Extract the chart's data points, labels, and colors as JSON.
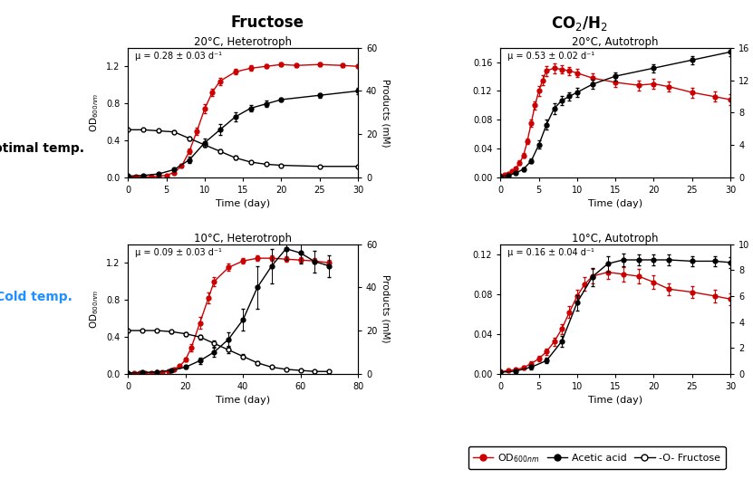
{
  "col_titles": [
    "Fructose",
    "CO₂/H₂"
  ],
  "row_labels": [
    "Optimal temp.",
    "Cold temp."
  ],
  "row_label_colors": [
    "black",
    "#1E90FF"
  ],
  "subplot_titles": [
    [
      "20°C, Heterotroph",
      "20°C, Autotroph"
    ],
    [
      "10°C, Heterotroph",
      "10°C, Autotroph"
    ]
  ],
  "mu_texts": [
    [
      "μ = 0.28 ± 0.03 d⁻¹",
      "μ = 0.53 ± 0.02 d⁻¹"
    ],
    [
      "μ = 0.09 ± 0.03 d⁻¹",
      "μ = 0.16 ± 0.04 d⁻¹"
    ]
  ],
  "plots": {
    "top_left": {
      "OD_x": [
        0,
        1,
        2,
        3,
        4,
        5,
        6,
        7,
        8,
        9,
        10,
        11,
        12,
        14,
        16,
        18,
        20,
        22,
        25,
        28,
        30
      ],
      "OD_y": [
        0.002,
        0.003,
        0.004,
        0.005,
        0.01,
        0.02,
        0.05,
        0.12,
        0.28,
        0.5,
        0.74,
        0.92,
        1.04,
        1.14,
        1.18,
        1.2,
        1.22,
        1.21,
        1.22,
        1.21,
        1.2
      ],
      "OD_err": [
        0.002,
        0.002,
        0.002,
        0.003,
        0.004,
        0.005,
        0.01,
        0.02,
        0.03,
        0.04,
        0.05,
        0.04,
        0.04,
        0.03,
        0.03,
        0.02,
        0.02,
        0.02,
        0.02,
        0.02,
        0.02
      ],
      "acetic_x": [
        0,
        2,
        4,
        6,
        8,
        10,
        12,
        14,
        16,
        18,
        20,
        25,
        30
      ],
      "acetic_y": [
        0.5,
        0.8,
        1.5,
        3.5,
        8,
        16,
        22,
        28,
        32,
        34,
        36,
        38,
        40
      ],
      "acetic_err": [
        0.3,
        0.4,
        0.5,
        0.7,
        1.5,
        2,
        2.5,
        2,
        1.5,
        1.5,
        1,
        1,
        1.5
      ],
      "fructose_x": [
        0,
        2,
        4,
        6,
        8,
        10,
        12,
        14,
        16,
        18,
        20,
        25,
        30
      ],
      "fructose_y": [
        22,
        22,
        21.5,
        21,
        18,
        15,
        12,
        9,
        7,
        6,
        5.5,
        5,
        5
      ],
      "fructose_err": [
        0.5,
        0.5,
        0.5,
        0.6,
        0.8,
        1,
        1,
        0.8,
        0.5,
        0.4,
        0.4,
        0.4,
        0.4
      ],
      "OD_ylim": [
        0,
        1.4
      ],
      "OD_yticks": [
        0.0,
        0.4,
        0.8,
        1.2
      ],
      "prod_ylim": [
        0,
        60
      ],
      "prod_yticks": [
        0,
        20,
        40,
        60
      ],
      "xlim": [
        0,
        30
      ],
      "xticks": [
        0,
        5,
        10,
        15,
        20,
        25,
        30
      ]
    },
    "top_right": {
      "OD_x": [
        0,
        0.5,
        1,
        1.5,
        2,
        2.5,
        3,
        3.5,
        4,
        4.5,
        5,
        5.5,
        6,
        7,
        8,
        9,
        10,
        12,
        15,
        18,
        20,
        22,
        25,
        28,
        30
      ],
      "OD_y": [
        0.002,
        0.003,
        0.005,
        0.008,
        0.012,
        0.02,
        0.03,
        0.05,
        0.075,
        0.1,
        0.12,
        0.135,
        0.148,
        0.152,
        0.15,
        0.148,
        0.145,
        0.138,
        0.132,
        0.128,
        0.13,
        0.126,
        0.118,
        0.112,
        0.108
      ],
      "OD_err": [
        0.001,
        0.001,
        0.001,
        0.002,
        0.002,
        0.003,
        0.003,
        0.004,
        0.005,
        0.006,
        0.007,
        0.007,
        0.007,
        0.007,
        0.006,
        0.006,
        0.006,
        0.006,
        0.006,
        0.007,
        0.007,
        0.007,
        0.007,
        0.007,
        0.008
      ],
      "acetic_x": [
        0,
        1,
        2,
        3,
        4,
        5,
        6,
        7,
        8,
        9,
        10,
        12,
        15,
        20,
        25,
        30
      ],
      "acetic_y": [
        0.1,
        0.2,
        0.5,
        1.0,
        2.0,
        4.0,
        6.5,
        8.5,
        9.5,
        10.0,
        10.5,
        11.5,
        12.5,
        13.5,
        14.5,
        15.5
      ],
      "acetic_err": [
        0.05,
        0.08,
        0.1,
        0.2,
        0.3,
        0.5,
        0.6,
        0.7,
        0.6,
        0.5,
        0.6,
        0.6,
        0.5,
        0.5,
        0.5,
        0.5
      ],
      "OD_ylim": [
        0,
        0.18
      ],
      "OD_yticks": [
        0.0,
        0.04,
        0.08,
        0.12,
        0.16
      ],
      "prod_ylim": [
        0,
        16
      ],
      "prod_yticks": [
        0,
        4,
        8,
        12,
        16
      ],
      "xlim": [
        0,
        30
      ],
      "xticks": [
        0,
        5,
        10,
        15,
        20,
        25,
        30
      ]
    },
    "bottom_left": {
      "OD_x": [
        0,
        2,
        4,
        6,
        8,
        10,
        12,
        14,
        16,
        18,
        20,
        22,
        25,
        28,
        30,
        35,
        40,
        45,
        50,
        55,
        60,
        65,
        70
      ],
      "OD_y": [
        0.002,
        0.003,
        0.005,
        0.008,
        0.01,
        0.015,
        0.02,
        0.03,
        0.05,
        0.08,
        0.15,
        0.28,
        0.55,
        0.82,
        1.0,
        1.15,
        1.22,
        1.25,
        1.25,
        1.24,
        1.23,
        1.22,
        1.2
      ],
      "OD_err": [
        0.001,
        0.002,
        0.002,
        0.003,
        0.003,
        0.003,
        0.004,
        0.005,
        0.008,
        0.01,
        0.02,
        0.04,
        0.06,
        0.06,
        0.05,
        0.04,
        0.03,
        0.03,
        0.03,
        0.03,
        0.03,
        0.03,
        0.03
      ],
      "acetic_x": [
        0,
        5,
        10,
        15,
        20,
        25,
        30,
        35,
        40,
        45,
        50,
        55,
        60,
        65,
        70
      ],
      "acetic_y": [
        0.3,
        0.5,
        0.8,
        1.5,
        3,
        6,
        10,
        16,
        25,
        40,
        50,
        58,
        56,
        52,
        50
      ],
      "acetic_err": [
        0.2,
        0.3,
        0.4,
        0.5,
        0.8,
        1.5,
        2,
        3,
        5,
        10,
        8,
        5,
        5,
        5,
        5
      ],
      "fructose_x": [
        0,
        5,
        10,
        15,
        20,
        25,
        30,
        35,
        40,
        45,
        50,
        55,
        60,
        65,
        70
      ],
      "fructose_y": [
        20,
        20,
        20,
        19.5,
        18.5,
        17,
        14,
        11,
        8,
        5,
        3,
        2,
        1.5,
        1,
        1
      ],
      "fructose_err": [
        0.5,
        0.5,
        0.5,
        0.6,
        0.8,
        1,
        1.5,
        1.5,
        1,
        0.8,
        0.5,
        0.3,
        0.3,
        0.2,
        0.2
      ],
      "OD_ylim": [
        0,
        1.4
      ],
      "OD_yticks": [
        0.0,
        0.4,
        0.8,
        1.2
      ],
      "prod_ylim": [
        0,
        60
      ],
      "prod_yticks": [
        0,
        20,
        40,
        60
      ],
      "xlim": [
        0,
        75
      ],
      "xticks": [
        0,
        20,
        40,
        60,
        80
      ]
    },
    "bottom_right": {
      "OD_x": [
        0,
        1,
        2,
        3,
        4,
        5,
        6,
        7,
        8,
        9,
        10,
        11,
        12,
        14,
        16,
        18,
        20,
        22,
        25,
        28,
        30
      ],
      "OD_y": [
        0.002,
        0.003,
        0.004,
        0.006,
        0.01,
        0.015,
        0.022,
        0.032,
        0.045,
        0.062,
        0.078,
        0.09,
        0.098,
        0.102,
        0.1,
        0.098,
        0.092,
        0.085,
        0.082,
        0.078,
        0.075
      ],
      "OD_err": [
        0.001,
        0.001,
        0.001,
        0.002,
        0.002,
        0.003,
        0.003,
        0.004,
        0.005,
        0.006,
        0.006,
        0.007,
        0.007,
        0.007,
        0.007,
        0.007,
        0.007,
        0.006,
        0.006,
        0.006,
        0.006
      ],
      "acetic_x": [
        0,
        2,
        4,
        6,
        8,
        10,
        12,
        14,
        16,
        18,
        20,
        22,
        25,
        28,
        30
      ],
      "acetic_y": [
        0.1,
        0.2,
        0.5,
        1.0,
        2.5,
        5.5,
        7.5,
        8.5,
        8.8,
        8.8,
        8.8,
        8.8,
        8.7,
        8.7,
        8.6
      ],
      "acetic_err": [
        0.05,
        0.1,
        0.15,
        0.2,
        0.4,
        0.6,
        0.7,
        0.6,
        0.5,
        0.4,
        0.4,
        0.4,
        0.4,
        0.4,
        0.4
      ],
      "OD_ylim": [
        0,
        0.13
      ],
      "OD_yticks": [
        0.0,
        0.04,
        0.08,
        0.12
      ],
      "prod_ylim": [
        0,
        10
      ],
      "prod_yticks": [
        0,
        2,
        4,
        6,
        8,
        10
      ],
      "xlim": [
        0,
        30
      ],
      "xticks": [
        0,
        5,
        10,
        15,
        20,
        25,
        30
      ]
    }
  },
  "od_color": "#CC0000",
  "acetic_color": "#000000",
  "fructose_color": "#000000",
  "figsize": [
    8.31,
    5.29
  ],
  "dpi": 100
}
